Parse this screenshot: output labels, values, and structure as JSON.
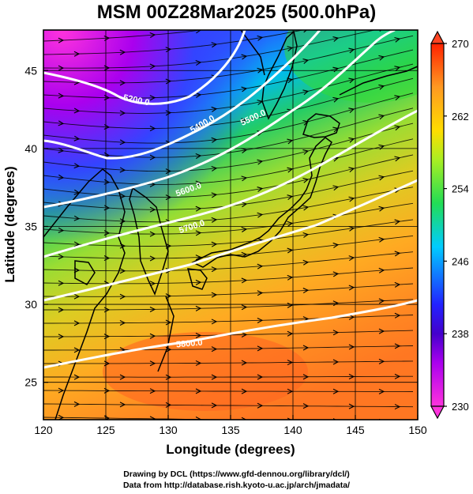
{
  "title": "MSM 00Z28Mar2025 (500.0hPa)",
  "x_axis": {
    "label": "Longitude (degrees)",
    "min": 120,
    "max": 150,
    "ticks": [
      120,
      125,
      130,
      135,
      140,
      145,
      150
    ]
  },
  "y_axis": {
    "label": "Latitude  (degrees)",
    "min": 22.6,
    "max": 47.6,
    "ticks": [
      25,
      30,
      35,
      40,
      45
    ]
  },
  "colorbar": {
    "min": 230,
    "max": 270,
    "tick_labels": [
      "230",
      "238",
      "246",
      "254",
      "262",
      "270"
    ],
    "colors": [
      "#ff33dd",
      "#8800ee",
      "#2020ff",
      "#00ccff",
      "#22dd55",
      "#aaee22",
      "#ffdd00",
      "#ff9922",
      "#ff2200"
    ]
  },
  "contours": {
    "color": "#ffffff",
    "labels": [
      "5200.0",
      "5400.0",
      "5500.0",
      "5600.0",
      "5700.0",
      "5800.0"
    ]
  },
  "credits": {
    "drawing": "Drawing by DCL (https://www.gfd-dennou.org/library/dcl/)",
    "data": "Data from http://database.rish.kyoto-u.ac.jp/arch/jmadata/"
  }
}
